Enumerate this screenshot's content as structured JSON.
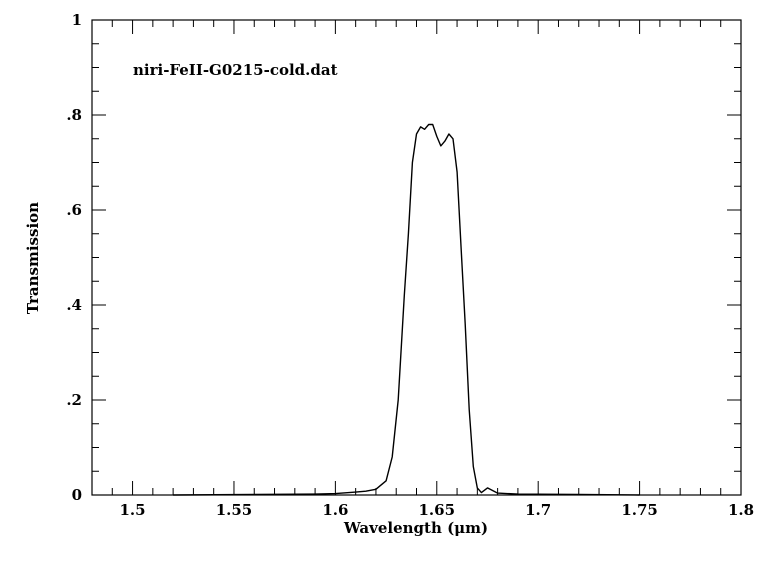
{
  "chart_data": {
    "type": "line",
    "title": "",
    "annotation": "niri-FeII-G0215-cold.dat",
    "xlabel": "Wavelength (μm)",
    "ylabel": "Transmission",
    "xlim": [
      1.48,
      1.8
    ],
    "ylim": [
      0,
      1
    ],
    "x_ticks": [
      {
        "value": 1.5,
        "label": "1.5"
      },
      {
        "value": 1.55,
        "label": "1.55"
      },
      {
        "value": 1.6,
        "label": "1.6"
      },
      {
        "value": 1.65,
        "label": "1.65"
      },
      {
        "value": 1.7,
        "label": "1.7"
      },
      {
        "value": 1.75,
        "label": "1.75"
      },
      {
        "value": 1.8,
        "label": "1.8"
      }
    ],
    "y_ticks": [
      {
        "value": 0,
        "label": "0"
      },
      {
        "value": 0.2,
        "label": ".2"
      },
      {
        "value": 0.4,
        "label": ".4"
      },
      {
        "value": 0.6,
        "label": ".6"
      },
      {
        "value": 0.8,
        "label": ".8"
      },
      {
        "value": 1,
        "label": "1"
      }
    ],
    "grid": false,
    "legend": "none",
    "series": [
      {
        "color": "#000000",
        "x": [
          1.52,
          1.56,
          1.59,
          1.6,
          1.61,
          1.615,
          1.62,
          1.625,
          1.628,
          1.631,
          1.634,
          1.636,
          1.638,
          1.64,
          1.642,
          1.644,
          1.646,
          1.648,
          1.65,
          1.652,
          1.654,
          1.656,
          1.658,
          1.66,
          1.662,
          1.664,
          1.666,
          1.668,
          1.67,
          1.672,
          1.675,
          1.68,
          1.69,
          1.72,
          1.75
        ],
        "y": [
          0.0,
          0.001,
          0.002,
          0.003,
          0.006,
          0.008,
          0.012,
          0.03,
          0.08,
          0.2,
          0.42,
          0.55,
          0.7,
          0.76,
          0.775,
          0.77,
          0.78,
          0.78,
          0.755,
          0.735,
          0.745,
          0.76,
          0.75,
          0.68,
          0.52,
          0.36,
          0.18,
          0.06,
          0.015,
          0.005,
          0.015,
          0.004,
          0.002,
          0.001,
          0.0
        ]
      }
    ]
  }
}
